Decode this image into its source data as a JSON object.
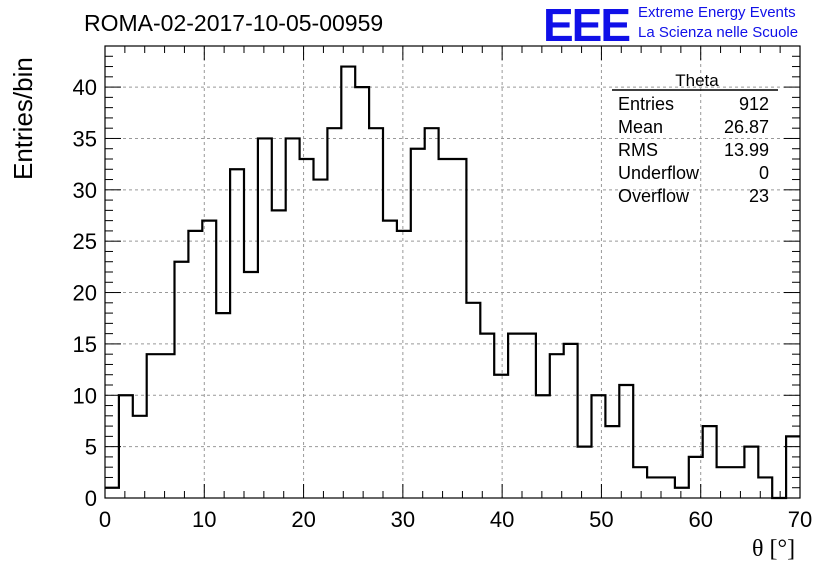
{
  "title": "ROMA-02-2017-10-05-00959",
  "logo": {
    "mark": "EEE",
    "line1": "Extreme Energy Events",
    "line2": "La Scienza nelle Scuole",
    "color": "#1010e8"
  },
  "stats": {
    "name": "Theta",
    "rows": [
      {
        "label": "Entries",
        "value": "912"
      },
      {
        "label": "Mean",
        "value": "26.87"
      },
      {
        "label": "RMS",
        "value": "13.99"
      },
      {
        "label": "Underflow",
        "value": "0"
      },
      {
        "label": "Overflow",
        "value": "23"
      }
    ]
  },
  "chart_data": {
    "type": "histogram",
    "xlabel": "θ [°]",
    "ylabel": "Entries/bin",
    "xlim": [
      0,
      70
    ],
    "ylim": [
      0,
      44
    ],
    "grid": true,
    "xticks": [
      0,
      10,
      20,
      30,
      40,
      50,
      60,
      70
    ],
    "yticks": [
      0,
      5,
      10,
      15,
      20,
      25,
      30,
      35,
      40
    ],
    "bin_width": 1.4,
    "values": [
      1,
      10,
      8,
      14,
      14,
      23,
      26,
      27,
      18,
      32,
      22,
      35,
      28,
      35,
      33,
      31,
      36,
      42,
      40,
      36,
      27,
      26,
      34,
      36,
      33,
      33,
      19,
      16,
      12,
      16,
      16,
      10,
      14,
      15,
      5,
      10,
      7,
      11,
      3,
      2,
      2,
      1,
      4,
      7,
      3,
      3,
      5,
      2,
      0,
      6
    ]
  }
}
